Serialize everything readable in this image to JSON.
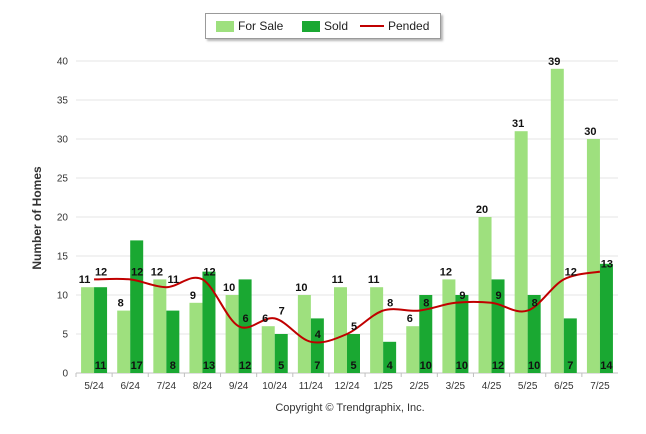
{
  "legend": {
    "for_sale": "For Sale",
    "sold": "Sold",
    "pended": "Pended"
  },
  "copyright": "Copyright © Trendgraphix, Inc.",
  "colors": {
    "for_sale": "#9ee07e",
    "sold": "#1aa832",
    "pended": "#c00000",
    "grid": "#e6e6e6"
  },
  "chart_data": {
    "type": "bar",
    "categories": [
      "5/24",
      "6/24",
      "7/24",
      "8/24",
      "9/24",
      "10/24",
      "11/24",
      "12/24",
      "1/25",
      "2/25",
      "3/25",
      "4/25",
      "5/25",
      "6/25",
      "7/25"
    ],
    "series": [
      {
        "name": "For Sale",
        "type": "bar",
        "values": [
          11,
          8,
          12,
          9,
          10,
          6,
          10,
          11,
          11,
          6,
          12,
          20,
          31,
          39,
          30
        ]
      },
      {
        "name": "Sold",
        "type": "bar",
        "values": [
          11,
          17,
          8,
          13,
          12,
          5,
          7,
          5,
          4,
          10,
          10,
          12,
          10,
          7,
          14
        ]
      },
      {
        "name": "Pended",
        "type": "line",
        "values": [
          12,
          12,
          11,
          12,
          6,
          7,
          4,
          5,
          8,
          8,
          9,
          9,
          8,
          12,
          13
        ]
      }
    ],
    "xlabel": "",
    "ylabel": "Number of Homes",
    "ylim": [
      0,
      40
    ],
    "yticks": [
      0,
      5,
      10,
      15,
      20,
      25,
      30,
      35,
      40
    ],
    "grid": true,
    "legend_position": "top-center"
  }
}
